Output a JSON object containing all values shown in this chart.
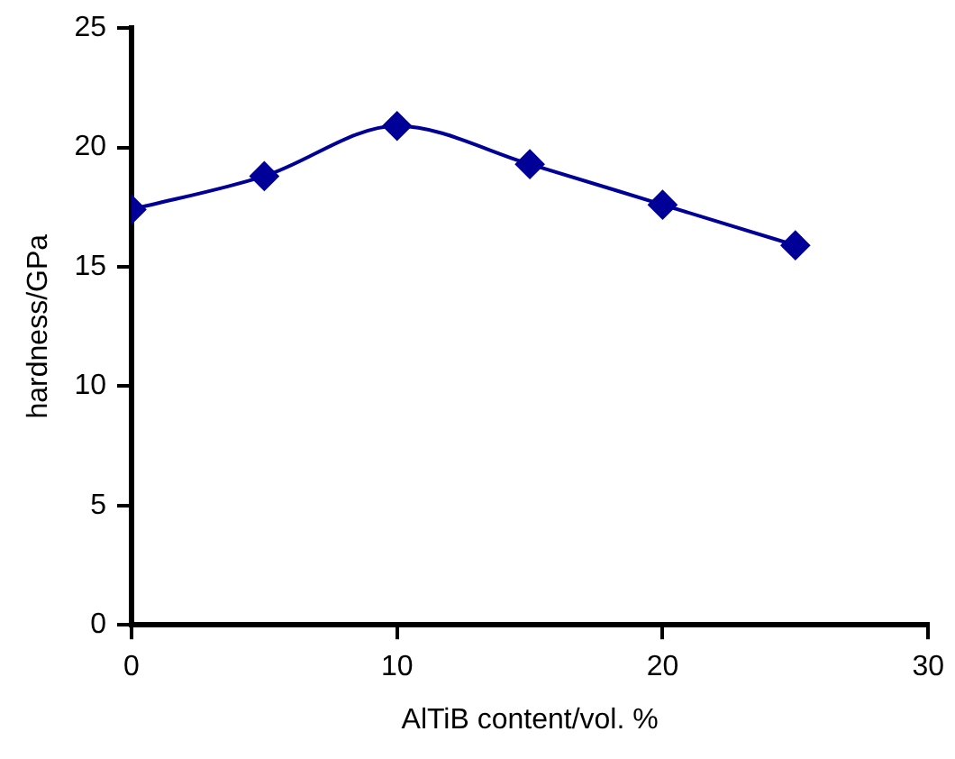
{
  "chart_data": {
    "type": "line",
    "xlabel": "AlTiB content/vol. %",
    "ylabel": "hardness/GPa",
    "x": [
      0,
      5,
      10,
      15,
      20,
      25
    ],
    "series": [
      {
        "color": "#000099",
        "values": [
          17.4,
          18.8,
          20.9,
          19.3,
          17.6,
          15.9
        ]
      }
    ],
    "xlim": [
      0,
      30
    ],
    "xticks": [
      0,
      10,
      20,
      30
    ],
    "ylim": [
      0,
      25
    ],
    "yticks": [
      0,
      5,
      10,
      15,
      20,
      25
    ],
    "grid": false,
    "legend": false,
    "marker": "diamond",
    "line_style": "solid"
  }
}
